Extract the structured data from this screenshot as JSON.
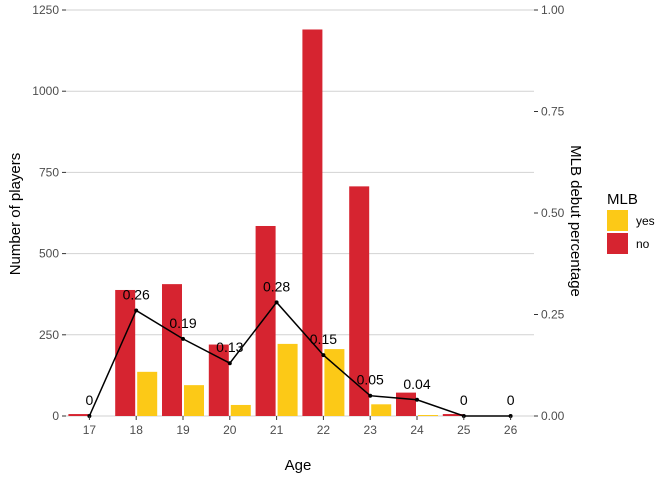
{
  "chart_data": {
    "type": "bar",
    "title": "",
    "xlabel": "Age",
    "ylabel": "Number of players",
    "y2label": "MLB debut percentage",
    "categories": [
      "17",
      "18",
      "19",
      "20",
      "21",
      "22",
      "23",
      "24",
      "25",
      "26"
    ],
    "ylim": [
      0,
      1250
    ],
    "yticks": [
      "0",
      "250",
      "500",
      "750",
      "1000",
      "1250"
    ],
    "y2lim": [
      0,
      1
    ],
    "y2ticks": [
      "0.00",
      "0.25",
      "0.50",
      "0.75",
      "1.00"
    ],
    "grid": true,
    "series": [
      {
        "name": "no",
        "color": "#d62430",
        "values": [
          6,
          388,
          406,
          220,
          585,
          1190,
          707,
          72,
          6,
          0
        ]
      },
      {
        "name": "yes",
        "color": "#fcc917",
        "values": [
          0,
          136,
          95,
          34,
          222,
          206,
          36,
          3,
          0,
          0
        ]
      }
    ],
    "line_series": {
      "axis": "secondary",
      "color": "#000000",
      "values": [
        0,
        0.26,
        0.19,
        0.13,
        0.28,
        0.15,
        0.05,
        0.04,
        0,
        0
      ],
      "labels": [
        "0",
        "0.26",
        "0.19",
        "0.13",
        "0.28",
        "0.15",
        "0.05",
        "0.04",
        "0",
        "0"
      ]
    },
    "legend": {
      "title": "MLB",
      "position": "right",
      "items": [
        {
          "label": "yes",
          "color": "#fcc917"
        },
        {
          "label": "no",
          "color": "#d62430"
        }
      ]
    }
  }
}
